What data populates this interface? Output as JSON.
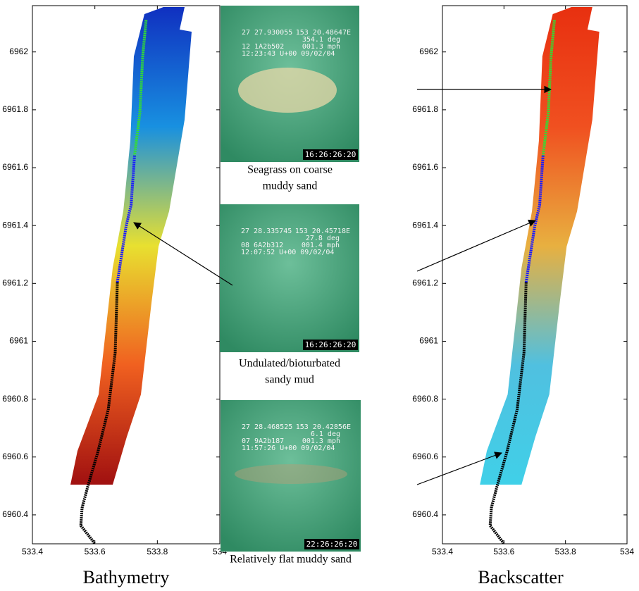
{
  "chart_data": [
    {
      "type": "track-map",
      "x_label": "Bathymetry",
      "xlim": [
        533.4,
        534
      ],
      "ylim": [
        6960.3,
        6962.16
      ],
      "xticks": [
        533.4,
        533.6,
        533.8,
        534
      ],
      "yticks": [
        6960.4,
        6960.6,
        6960.8,
        6961,
        6961.2,
        6961.4,
        6961.6,
        6961.8,
        6962
      ],
      "swath_colors": [
        "#1030c0",
        "#1890e0",
        "#e8e030",
        "#f06020",
        "#a01010"
      ],
      "series": [
        {
          "color": "#33dd33",
          "x": [
            533.764,
            533.753,
            533.744,
            533.727
          ],
          "values": [
            6962.11,
            6961.983,
            6961.788,
            6961.642
          ]
        },
        {
          "color": "#1a1aff",
          "x": [
            533.727,
            533.716,
            533.7,
            533.672
          ],
          "values": [
            6961.642,
            6961.471,
            6961.398,
            6961.204
          ]
        },
        {
          "color": "#000000",
          "x": [
            533.672,
            533.665,
            533.643,
            533.61,
            533.577,
            533.559,
            533.555,
            533.599
          ],
          "values": [
            6961.204,
            6960.96,
            6960.765,
            6960.619,
            6960.497,
            6960.424,
            6960.363,
            6960.302
          ]
        }
      ]
    },
    {
      "type": "track-map",
      "x_label": "Backscatter",
      "xlim": [
        533.4,
        534
      ],
      "ylim": [
        6960.3,
        6962.16
      ],
      "xticks": [
        533.4,
        533.6,
        533.8,
        534
      ],
      "yticks": [
        6960.4,
        6960.6,
        6960.8,
        6961,
        6961.2,
        6961.4,
        6961.6,
        6961.8,
        6962
      ],
      "swath_colors": [
        "#e83010",
        "#f05020",
        "#e8b040",
        "#50c0e0",
        "#40d0e8"
      ],
      "series": [
        {
          "color": "#33dd33",
          "x": [
            533.764,
            533.753,
            533.744,
            533.727
          ],
          "values": [
            6962.11,
            6961.983,
            6961.788,
            6961.642
          ]
        },
        {
          "color": "#1a1aff",
          "x": [
            533.727,
            533.716,
            533.7,
            533.672
          ],
          "values": [
            6961.642,
            6961.471,
            6961.398,
            6961.204
          ]
        },
        {
          "color": "#000000",
          "x": [
            533.672,
            533.665,
            533.643,
            533.61,
            533.577,
            533.559,
            533.555,
            533.599
          ],
          "values": [
            6961.204,
            6960.96,
            6960.765,
            6960.619,
            6960.497,
            6960.424,
            6960.363,
            6960.302
          ]
        }
      ]
    }
  ],
  "photos": [
    {
      "lat": "27 27.930055",
      "lon": "153 20.48647E",
      "heading": "354.1 deg",
      "id": "12 1A2b502",
      "speed": "001.3 mph",
      "datetime": "12:23:43 U+00 09/02/04",
      "timestamp": "16:26:26:20",
      "caption": [
        "Seagrass on coarse",
        "muddy sand"
      ]
    },
    {
      "lat": "27 28.335745",
      "lon": "153 20.45718E",
      "heading": "27.8 deg",
      "id": "08 6A2b312",
      "speed": "001.4 mph",
      "datetime": "12:07:52 U+00 09/02/04",
      "timestamp": "16:26:26:20",
      "caption": [
        "Undulated/bioturbated",
        "sandy mud"
      ]
    },
    {
      "lat": "27 28.468525",
      "lon": "153 20.42856E",
      "heading": "6.1 deg",
      "id": "07 9A2b187",
      "speed": "001.3 mph",
      "datetime": "11:57:26 U+00 09/02/04",
      "timestamp": "22:26:26:20",
      "caption": [
        "Relatively flat muddy sand"
      ]
    }
  ]
}
